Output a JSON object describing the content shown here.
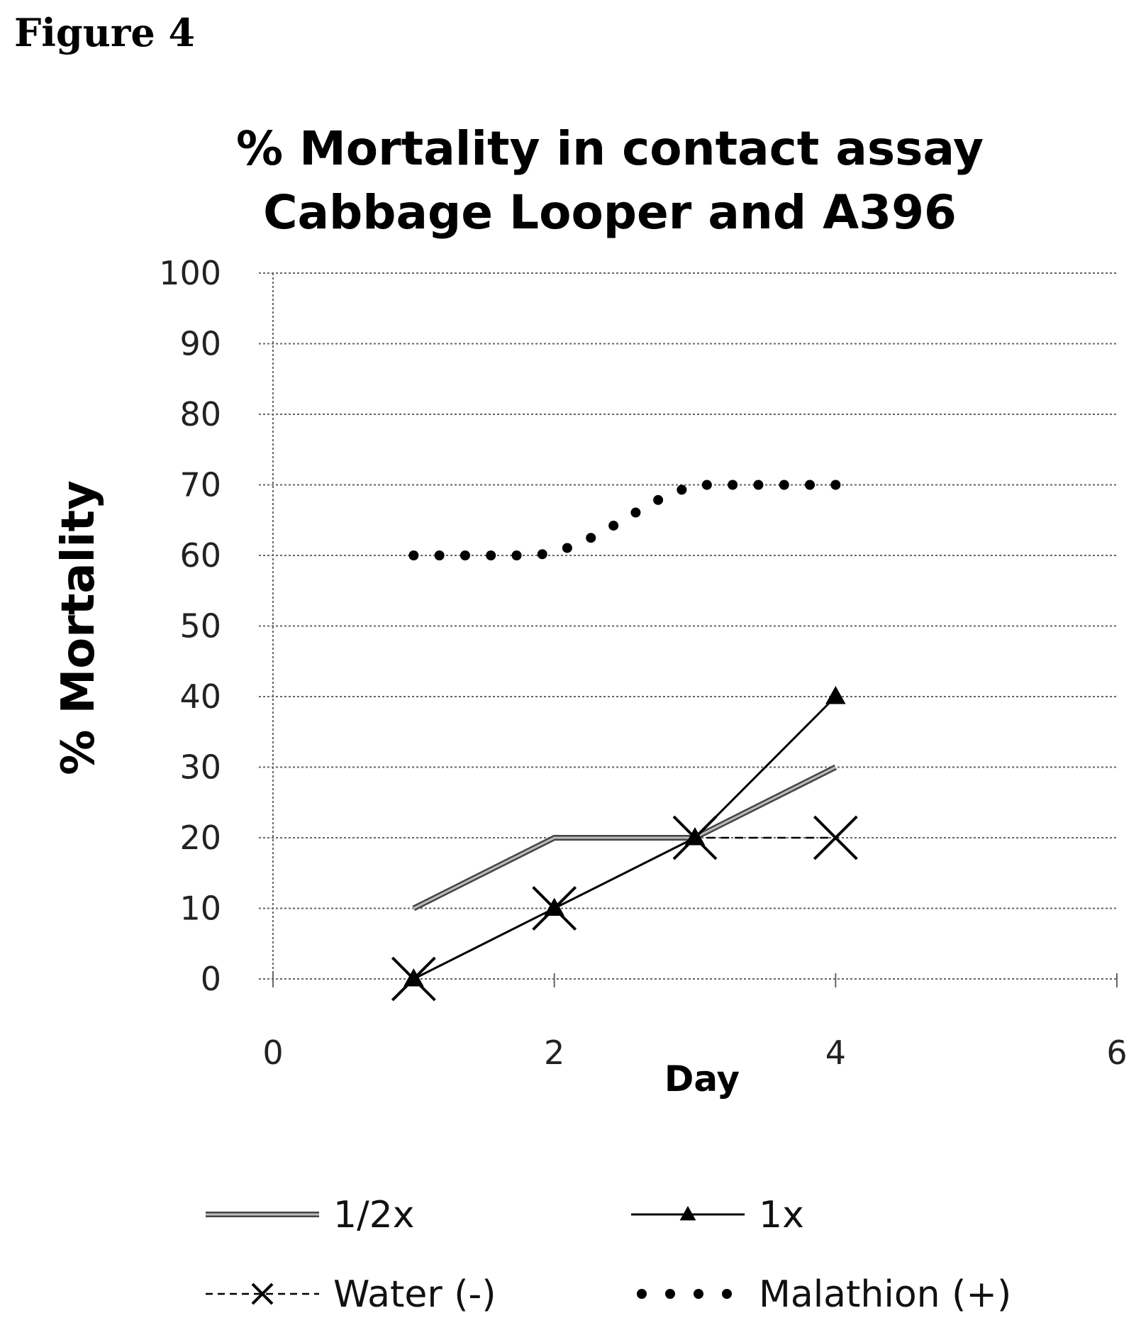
{
  "figure_label": "Figure 4",
  "chart_data": {
    "type": "line",
    "title": [
      "% Mortality in contact assay",
      "Cabbage Looper and A396"
    ],
    "xlabel": "Day",
    "ylabel": "% Mortality",
    "xlim": [
      0,
      6
    ],
    "ylim": [
      0,
      100
    ],
    "xticks": [
      0,
      2,
      4,
      6
    ],
    "yticks": [
      0,
      10,
      20,
      30,
      40,
      50,
      60,
      70,
      80,
      90,
      100
    ],
    "grid": "horizontal dotted",
    "legend_position": "bottom",
    "series": [
      {
        "name": "1/2x",
        "x": [
          1,
          2,
          3,
          4
        ],
        "y": [
          10,
          20,
          20,
          30
        ],
        "style": "double-line",
        "marker": "none",
        "color": "#555555"
      },
      {
        "name": "1x",
        "x": [
          1,
          2,
          3,
          4
        ],
        "y": [
          0,
          10,
          20,
          40
        ],
        "style": "solid",
        "marker": "triangle",
        "color": "#000000"
      },
      {
        "name": "Water (-)",
        "x": [
          1,
          2,
          3,
          4
        ],
        "y": [
          0,
          10,
          20,
          20
        ],
        "style": "dashed",
        "marker": "x",
        "color": "#000000"
      },
      {
        "name": "Malathion (+)",
        "x": [
          1,
          2,
          3,
          4
        ],
        "y": [
          60,
          60,
          70,
          70
        ],
        "style": "dots",
        "marker": "none",
        "color": "#000000"
      }
    ]
  }
}
